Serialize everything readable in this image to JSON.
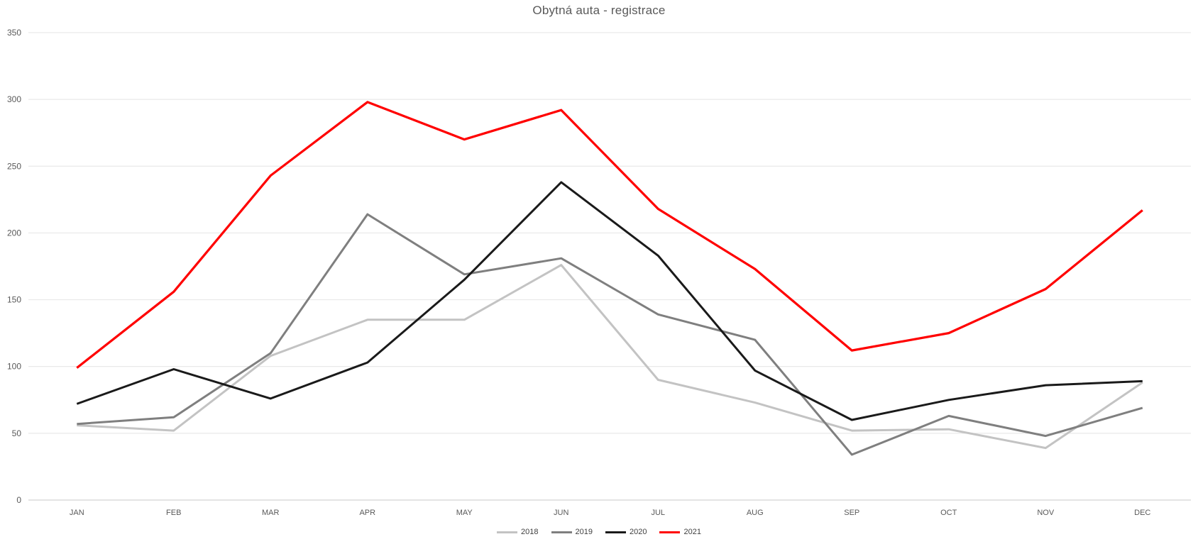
{
  "title": "Obytná auta - registrace",
  "chart_data": {
    "type": "line",
    "title": "Obytná auta - registrace",
    "xlabel": "",
    "ylabel": "",
    "categories": [
      "JAN",
      "FEB",
      "MAR",
      "APR",
      "MAY",
      "JUN",
      "JUL",
      "AUG",
      "SEP",
      "OCT",
      "NOV",
      "DEC"
    ],
    "series": [
      {
        "name": "2018",
        "color": "#c3c3c3",
        "values": [
          56,
          52,
          108,
          135,
          135,
          176,
          90,
          73,
          52,
          53,
          39,
          88
        ]
      },
      {
        "name": "2019",
        "color": "#7f7f7f",
        "values": [
          57,
          62,
          110,
          214,
          169,
          181,
          139,
          120,
          34,
          63,
          48,
          69
        ]
      },
      {
        "name": "2020",
        "color": "#1a1a1a",
        "values": [
          72,
          98,
          76,
          103,
          165,
          238,
          183,
          97,
          60,
          75,
          86,
          89
        ]
      },
      {
        "name": "2021",
        "color": "#ff0000",
        "values": [
          99,
          156,
          243,
          298,
          270,
          292,
          218,
          173,
          112,
          125,
          158,
          217
        ]
      }
    ],
    "ylim": [
      0,
      350
    ],
    "ytick_step": 50,
    "yticks": [
      0,
      50,
      100,
      150,
      200,
      250,
      300,
      350
    ],
    "grid": "horizontal",
    "legend_position": "bottom-center"
  },
  "colors": {
    "background": "#ffffff",
    "gridline": "#e4e4e4",
    "zero_line": "#c9c9c9",
    "axis_text": "#595959",
    "title_text": "#595959",
    "legend_text": "#404040"
  }
}
